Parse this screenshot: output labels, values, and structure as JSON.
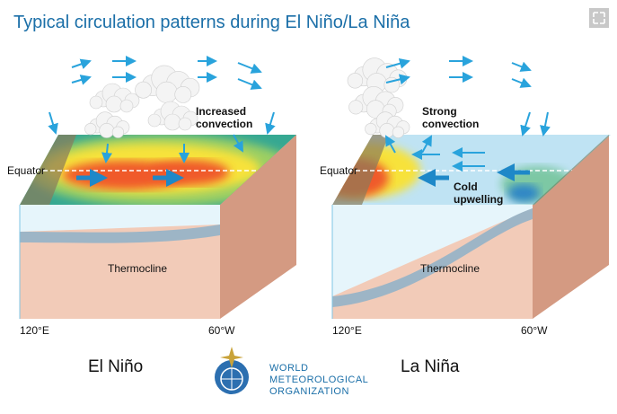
{
  "header": {
    "title": "Typical circulation patterns during  El Niño/La Niña"
  },
  "panels": [
    {
      "name": "El Niño",
      "equator": "Equator",
      "thermocline": "Thermocline",
      "west": "120°E",
      "east": "60°W",
      "notes": [
        {
          "lines": [
            "Increased",
            "convection"
          ]
        }
      ]
    },
    {
      "name": "La Niña",
      "equator": "Equator",
      "thermocline": "Thermocline",
      "west": "120°E",
      "east": "60°W",
      "notes": [
        {
          "lines": [
            "Strong",
            "convection"
          ]
        },
        {
          "lines": [
            "Cold",
            "upwelling"
          ]
        }
      ]
    }
  ],
  "logo": {
    "lines": [
      "WORLD",
      "METEOROLOGICAL",
      "ORGANIZATION"
    ]
  }
}
